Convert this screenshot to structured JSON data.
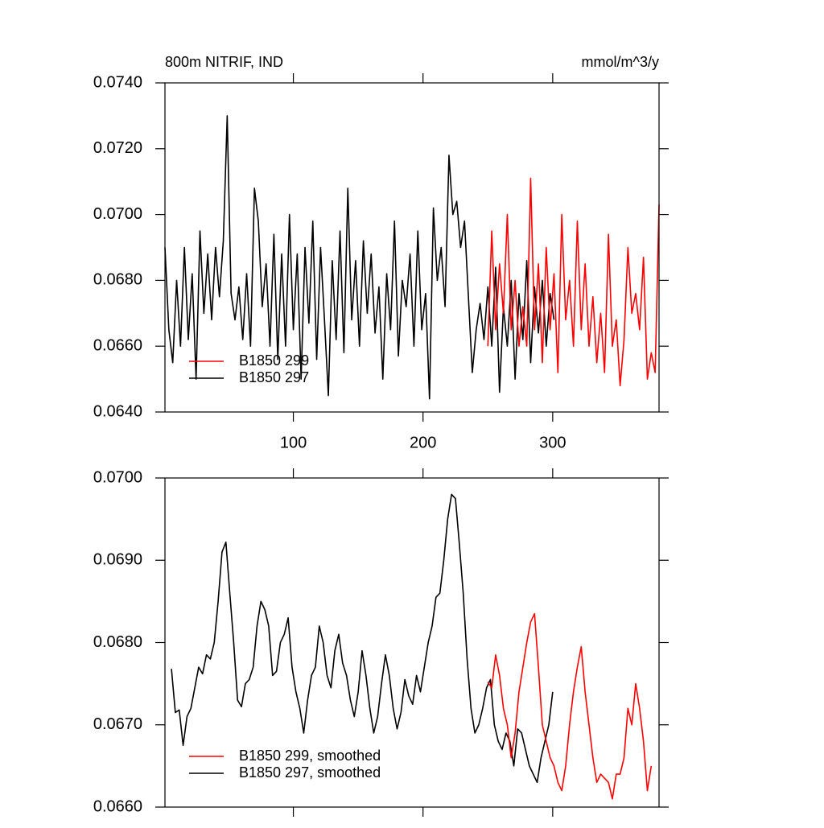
{
  "chart_data": [
    {
      "type": "line",
      "title": "800m NITRIF, IND",
      "subtitle": "mmol/m^3/y",
      "xlim": [
        1,
        382
      ],
      "xticks": [
        100,
        200,
        300
      ],
      "xticklabels": true,
      "ylim": [
        0.064,
        0.074
      ],
      "yticks": [
        {
          "value": 0.064,
          "label": "0.0640"
        },
        {
          "value": 0.066,
          "label": "0.0660"
        },
        {
          "value": 0.068,
          "label": "0.0680"
        },
        {
          "value": 0.07,
          "label": "0.0700"
        },
        {
          "value": 0.072,
          "label": "0.0720"
        },
        {
          "value": 0.074,
          "label": "0.0740"
        }
      ],
      "legend": "lower left",
      "series": [
        {
          "name": "B1850 297",
          "color": "#000000",
          "x": [
            1,
            4,
            7,
            10,
            13,
            16,
            19,
            22,
            25,
            28,
            31,
            34,
            37,
            40,
            43,
            46,
            49,
            52,
            55,
            58,
            61,
            64,
            67,
            70,
            73,
            76,
            79,
            82,
            85,
            88,
            91,
            94,
            97,
            100,
            103,
            106,
            109,
            112,
            115,
            118,
            121,
            124,
            127,
            130,
            133,
            136,
            139,
            142,
            145,
            148,
            151,
            154,
            157,
            160,
            163,
            166,
            169,
            172,
            175,
            178,
            181,
            184,
            187,
            190,
            193,
            196,
            199,
            202,
            205,
            208,
            211,
            214,
            217,
            220,
            223,
            226,
            229,
            232,
            235,
            238,
            241,
            244,
            247,
            250,
            253,
            256,
            259,
            262,
            265,
            268,
            271,
            274,
            277,
            280,
            283,
            286,
            289,
            292,
            295,
            298,
            301
          ],
          "values": [
            0.069,
            0.0665,
            0.0655,
            0.068,
            0.066,
            0.069,
            0.0662,
            0.0682,
            0.065,
            0.0695,
            0.067,
            0.0688,
            0.0668,
            0.069,
            0.0675,
            0.0692,
            0.073,
            0.0676,
            0.0668,
            0.0678,
            0.0662,
            0.0682,
            0.066,
            0.0708,
            0.0698,
            0.0672,
            0.0685,
            0.066,
            0.0694,
            0.0656,
            0.0688,
            0.066,
            0.07,
            0.0665,
            0.0688,
            0.065,
            0.069,
            0.0667,
            0.0698,
            0.0656,
            0.069,
            0.0668,
            0.0645,
            0.0686,
            0.0662,
            0.0695,
            0.0658,
            0.0708,
            0.0668,
            0.0686,
            0.066,
            0.0692,
            0.067,
            0.0688,
            0.0664,
            0.0678,
            0.065,
            0.0682,
            0.0665,
            0.0698,
            0.0657,
            0.068,
            0.0672,
            0.0688,
            0.066,
            0.0695,
            0.0665,
            0.0676,
            0.0644,
            0.0702,
            0.068,
            0.069,
            0.0672,
            0.0718,
            0.07,
            0.0704,
            0.069,
            0.0698,
            0.0675,
            0.0652,
            0.0665,
            0.0673,
            0.0662,
            0.0678,
            0.066,
            0.0684,
            0.0646,
            0.0672,
            0.066,
            0.068,
            0.065,
            0.0676,
            0.0662,
            0.0686,
            0.0655,
            0.0678,
            0.0664,
            0.068,
            0.066,
            0.0676,
            0.0668
          ]
        },
        {
          "name": "B1850 299",
          "color": "#ff0000",
          "x": [
            250,
            253,
            256,
            259,
            262,
            265,
            268,
            271,
            274,
            277,
            280,
            283,
            286,
            289,
            292,
            295,
            298,
            301,
            304,
            307,
            310,
            313,
            316,
            319,
            322,
            325,
            328,
            331,
            334,
            337,
            340,
            343,
            346,
            349,
            352,
            355,
            358,
            361,
            364,
            367,
            370,
            373,
            376,
            379,
            382
          ],
          "values": [
            0.066,
            0.0695,
            0.0665,
            0.0685,
            0.067,
            0.07,
            0.0665,
            0.068,
            0.066,
            0.0672,
            0.066,
            0.0711,
            0.0665,
            0.0685,
            0.0655,
            0.069,
            0.0665,
            0.0682,
            0.0652,
            0.07,
            0.0668,
            0.068,
            0.066,
            0.0698,
            0.0665,
            0.0685,
            0.066,
            0.0675,
            0.0655,
            0.067,
            0.0652,
            0.0694,
            0.066,
            0.0668,
            0.0648,
            0.0662,
            0.069,
            0.067,
            0.0676,
            0.0665,
            0.0687,
            0.065,
            0.0658,
            0.0652,
            0.0703
          ]
        }
      ]
    },
    {
      "type": "line",
      "xlim": [
        1,
        382
      ],
      "xticks": [
        100,
        200,
        300
      ],
      "xticklabels": false,
      "ylim": [
        0.066,
        0.07
      ],
      "yticks": [
        {
          "value": 0.066,
          "label": "0.0660"
        },
        {
          "value": 0.067,
          "label": "0.0670"
        },
        {
          "value": 0.068,
          "label": "0.0680"
        },
        {
          "value": 0.069,
          "label": "0.0690"
        },
        {
          "value": 0.07,
          "label": "0.0700"
        }
      ],
      "legend": "lower left",
      "series": [
        {
          "name": "B1850 297, smoothed",
          "color": "#000000",
          "x": [
            6,
            9,
            12,
            15,
            18,
            21,
            24,
            27,
            30,
            33,
            36,
            39,
            42,
            45,
            48,
            51,
            54,
            57,
            60,
            63,
            66,
            69,
            72,
            75,
            78,
            81,
            84,
            87,
            90,
            93,
            96,
            99,
            102,
            105,
            108,
            111,
            114,
            117,
            120,
            123,
            126,
            129,
            132,
            135,
            138,
            141,
            144,
            147,
            150,
            153,
            156,
            159,
            162,
            165,
            168,
            171,
            174,
            177,
            180,
            183,
            186,
            189,
            192,
            195,
            198,
            201,
            204,
            207,
            210,
            213,
            216,
            219,
            222,
            225,
            228,
            231,
            234,
            237,
            240,
            243,
            246,
            249,
            252,
            255,
            258,
            261,
            264,
            267,
            270,
            273,
            276,
            279,
            282,
            285,
            288,
            291,
            294,
            297,
            300
          ],
          "values": [
            0.06768,
            0.06715,
            0.06718,
            0.06675,
            0.0671,
            0.0672,
            0.06745,
            0.0677,
            0.06762,
            0.06785,
            0.0678,
            0.068,
            0.0685,
            0.0691,
            0.06922,
            0.0686,
            0.068,
            0.0673,
            0.06722,
            0.0675,
            0.06755,
            0.0677,
            0.0682,
            0.0685,
            0.0684,
            0.0682,
            0.0676,
            0.06765,
            0.068,
            0.0681,
            0.0683,
            0.0677,
            0.0674,
            0.0672,
            0.0669,
            0.0673,
            0.0676,
            0.0677,
            0.0682,
            0.068,
            0.0676,
            0.06745,
            0.0679,
            0.0681,
            0.06775,
            0.0676,
            0.0673,
            0.0671,
            0.0674,
            0.0679,
            0.0676,
            0.0672,
            0.0669,
            0.0671,
            0.0675,
            0.06785,
            0.0676,
            0.0672,
            0.06695,
            0.06715,
            0.06755,
            0.06735,
            0.06725,
            0.0676,
            0.0674,
            0.0677,
            0.068,
            0.0682,
            0.06855,
            0.0686,
            0.069,
            0.0695,
            0.0698,
            0.06975,
            0.0692,
            0.0686,
            0.0678,
            0.0672,
            0.0669,
            0.067,
            0.0672,
            0.06745,
            0.06755,
            0.067,
            0.0668,
            0.0667,
            0.0669,
            0.0668,
            0.0665,
            0.06695,
            0.0669,
            0.0667,
            0.0665,
            0.0664,
            0.0663,
            0.0666,
            0.0668,
            0.067,
            0.0674
          ]
        },
        {
          "name": "B1850 299, smoothed",
          "color": "#ff0000",
          "x": [
            250,
            253,
            256,
            259,
            262,
            265,
            268,
            271,
            274,
            277,
            280,
            283,
            286,
            289,
            292,
            295,
            298,
            301,
            304,
            307,
            310,
            313,
            316,
            319,
            322,
            325,
            328,
            331,
            334,
            337,
            340,
            343,
            346,
            349,
            352,
            355,
            358,
            361,
            364,
            367,
            370,
            373,
            376
          ],
          "values": [
            0.06752,
            0.06745,
            0.06785,
            0.0676,
            0.0672,
            0.067,
            0.0666,
            0.0669,
            0.0674,
            0.0677,
            0.068,
            0.06825,
            0.06835,
            0.0677,
            0.067,
            0.0668,
            0.0666,
            0.0665,
            0.0663,
            0.0662,
            0.0665,
            0.067,
            0.0674,
            0.0677,
            0.06795,
            0.0674,
            0.067,
            0.0666,
            0.0663,
            0.0664,
            0.06635,
            0.0663,
            0.0661,
            0.0664,
            0.0664,
            0.0666,
            0.0672,
            0.067,
            0.0675,
            0.0672,
            0.0668,
            0.0662,
            0.0665
          ]
        }
      ]
    }
  ]
}
